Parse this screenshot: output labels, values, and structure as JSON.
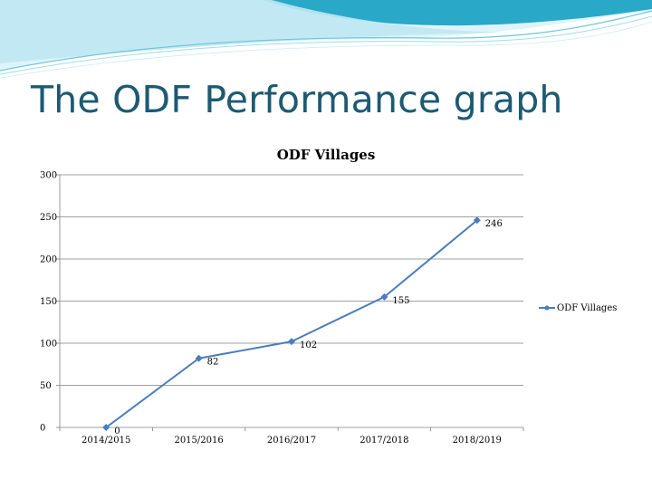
{
  "slide": {
    "title": "The ODF Performance graph"
  },
  "colors": {
    "title": "#1d5a72",
    "series": "#4a7ebb",
    "gridline": "#808080",
    "header_wave_dark": "#2aa8c8",
    "header_wave_light": "#bfe8f2"
  },
  "chart_data": {
    "type": "line",
    "title": "ODF Villages",
    "xlabel": "",
    "ylabel": "",
    "categories": [
      "2014/2015",
      "2015/2016",
      "2016/2017",
      "2017/2018",
      "2018/2019"
    ],
    "series": [
      {
        "name": "ODF Villages",
        "values": [
          0,
          82,
          102,
          155,
          246
        ],
        "data_labels": [
          "0",
          "82",
          "102",
          "155",
          "246"
        ]
      }
    ],
    "ylim": [
      0,
      300
    ],
    "yticks": [
      0,
      50,
      100,
      150,
      200,
      250,
      300
    ],
    "grid": true,
    "legend": "right"
  }
}
